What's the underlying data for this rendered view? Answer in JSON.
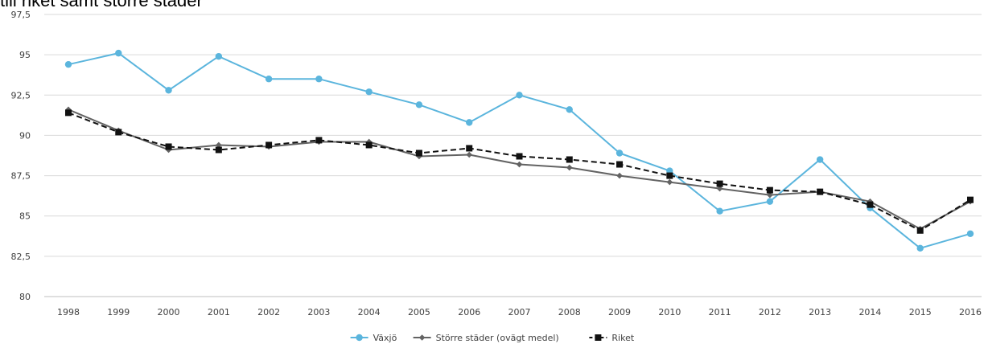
{
  "chart_data": {
    "type": "line",
    "title": "till riket samt större städer",
    "x": [
      "1998",
      "1999",
      "2000",
      "2001",
      "2002",
      "2003",
      "2004",
      "2005",
      "2006",
      "2007",
      "2008",
      "2009",
      "2010",
      "2011",
      "2012",
      "2013",
      "2014",
      "2015",
      "2016"
    ],
    "ylim": [
      80,
      97.5
    ],
    "yticks": [
      "80",
      "82,5",
      "85",
      "87,5",
      "90",
      "92,5",
      "95",
      "97,5"
    ],
    "grid": true,
    "legend": "bottom-center",
    "series": [
      {
        "name": "Växjö",
        "color": "#5bb5dd",
        "marker": "circle",
        "dash": "solid",
        "values": [
          94.4,
          95.1,
          92.8,
          94.9,
          93.5,
          93.5,
          92.7,
          91.9,
          90.8,
          92.5,
          91.6,
          88.9,
          87.8,
          85.3,
          85.9,
          88.5,
          85.5,
          83.0,
          83.9
        ]
      },
      {
        "name": "Större städer (ovägt medel)",
        "color": "#636363",
        "marker": "diamond",
        "dash": "solid",
        "values": [
          91.6,
          90.3,
          89.1,
          89.4,
          89.3,
          89.6,
          89.6,
          88.7,
          88.8,
          88.2,
          88.0,
          87.5,
          87.1,
          86.7,
          86.3,
          86.5,
          85.9,
          84.2,
          85.9
        ]
      },
      {
        "name": "Riket",
        "color": "#111111",
        "marker": "square",
        "dash": "dashed",
        "values": [
          91.4,
          90.2,
          89.3,
          89.1,
          89.4,
          89.7,
          89.4,
          88.9,
          89.2,
          88.7,
          88.5,
          88.2,
          87.5,
          87.0,
          86.6,
          86.5,
          85.7,
          84.1,
          86.0
        ]
      }
    ]
  }
}
